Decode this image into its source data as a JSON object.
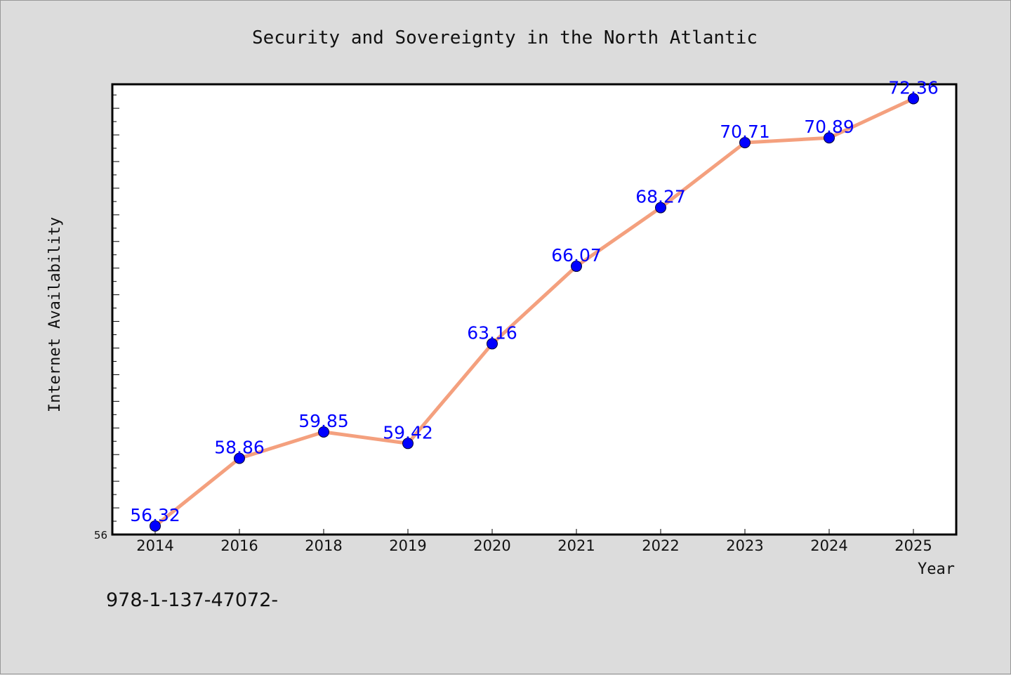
{
  "chart_data": {
    "type": "line",
    "title": "Security and Sovereignty in the North Atlantic",
    "xlabel": "Year",
    "ylabel": "Internet Availability",
    "categories": [
      "2014",
      "2016",
      "2018",
      "2019",
      "2020",
      "2021",
      "2022",
      "2023",
      "2024",
      "2025"
    ],
    "values": [
      56.32,
      58.86,
      59.85,
      59.42,
      63.16,
      66.07,
      68.27,
      70.71,
      70.89,
      72.36
    ],
    "data_labels": [
      "56.32",
      "58.86",
      "59.85",
      "59.42",
      "63.16",
      "66.07",
      "68.27",
      "70.71",
      "70.89",
      "72.36"
    ],
    "ylim": [
      56,
      72.9
    ],
    "y_tick_labels": [
      "56"
    ],
    "grid": false,
    "line_color": "#f4a07e",
    "marker_color": "#0000ff",
    "label_color": "#0000ff"
  },
  "footer": {
    "text": "978-1-137-47072-"
  }
}
